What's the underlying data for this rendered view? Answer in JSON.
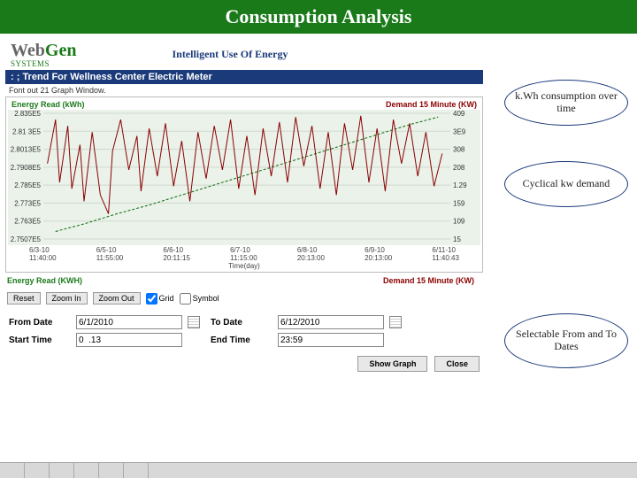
{
  "title": "Consumption Analysis",
  "brand": {
    "web": "Web",
    "gen": "Gen",
    "sub": "SYSTEMS"
  },
  "tagline": "Intelligent Use Of Energy",
  "section_title": ": ; Trend For Wellness Center Electric Meter",
  "popout_label": "Font out 21 Graph Window.",
  "chart": {
    "left_axis_label": "Energy Read (kWh)",
    "right_axis_label": "Demand 15 Minute (KW)",
    "xlabel": "Time(day)",
    "bg_color": "#eaf2ea",
    "grid_color": "#cfd9cf",
    "left_color": "#0a6a0a",
    "right_color": "#8b0000",
    "y_left": {
      "min": 2.7507,
      "max": 2.835,
      "ticks": [
        "2.835E5",
        "2.81 3E5",
        "2.8013E5",
        "2.7908E5",
        "2.785E5",
        "2.773E5",
        "2.763E5",
        "2.7507E5"
      ]
    },
    "y_right": {
      "min": 15,
      "max": 409,
      "ticks": [
        "409",
        "3E9",
        "308",
        "208",
        "1.29",
        "159",
        "109",
        "15"
      ]
    },
    "x_ticks": [
      {
        "a": "6/3-10",
        "b": "11:40:00"
      },
      {
        "a": "6/5-10",
        "b": "11:55:00"
      },
      {
        "a": "6/6-10",
        "b": "20:11:15"
      },
      {
        "a": "6/7-10",
        "b": "11:15:00"
      },
      {
        "a": "6/8-10",
        "b": "20:13:00"
      },
      {
        "a": "6/9-10",
        "b": "20:13:00"
      },
      {
        "a": "6/11-10",
        "b": "11:40:43"
      }
    ],
    "left_series": [
      {
        "x": 0.03,
        "y": 0.06
      },
      {
        "x": 0.1,
        "y": 0.12
      },
      {
        "x": 0.18,
        "y": 0.2
      },
      {
        "x": 0.26,
        "y": 0.27
      },
      {
        "x": 0.34,
        "y": 0.35
      },
      {
        "x": 0.42,
        "y": 0.43
      },
      {
        "x": 0.5,
        "y": 0.51
      },
      {
        "x": 0.58,
        "y": 0.59
      },
      {
        "x": 0.66,
        "y": 0.67
      },
      {
        "x": 0.74,
        "y": 0.75
      },
      {
        "x": 0.82,
        "y": 0.83
      },
      {
        "x": 0.9,
        "y": 0.91
      },
      {
        "x": 0.97,
        "y": 0.97
      }
    ],
    "right_series": [
      {
        "x": 0.01,
        "y": 0.6
      },
      {
        "x": 0.03,
        "y": 0.95
      },
      {
        "x": 0.04,
        "y": 0.45
      },
      {
        "x": 0.06,
        "y": 0.9
      },
      {
        "x": 0.07,
        "y": 0.4
      },
      {
        "x": 0.09,
        "y": 0.75
      },
      {
        "x": 0.1,
        "y": 0.3
      },
      {
        "x": 0.12,
        "y": 0.85
      },
      {
        "x": 0.14,
        "y": 0.35
      },
      {
        "x": 0.16,
        "y": 0.2
      },
      {
        "x": 0.17,
        "y": 0.7
      },
      {
        "x": 0.19,
        "y": 0.95
      },
      {
        "x": 0.21,
        "y": 0.55
      },
      {
        "x": 0.23,
        "y": 0.82
      },
      {
        "x": 0.24,
        "y": 0.38
      },
      {
        "x": 0.26,
        "y": 0.88
      },
      {
        "x": 0.28,
        "y": 0.5
      },
      {
        "x": 0.3,
        "y": 0.92
      },
      {
        "x": 0.32,
        "y": 0.42
      },
      {
        "x": 0.34,
        "y": 0.78
      },
      {
        "x": 0.36,
        "y": 0.3
      },
      {
        "x": 0.38,
        "y": 0.85
      },
      {
        "x": 0.4,
        "y": 0.48
      },
      {
        "x": 0.42,
        "y": 0.9
      },
      {
        "x": 0.44,
        "y": 0.55
      },
      {
        "x": 0.46,
        "y": 0.95
      },
      {
        "x": 0.48,
        "y": 0.4
      },
      {
        "x": 0.5,
        "y": 0.82
      },
      {
        "x": 0.52,
        "y": 0.35
      },
      {
        "x": 0.54,
        "y": 0.88
      },
      {
        "x": 0.56,
        "y": 0.5
      },
      {
        "x": 0.58,
        "y": 0.93
      },
      {
        "x": 0.6,
        "y": 0.45
      },
      {
        "x": 0.62,
        "y": 0.97
      },
      {
        "x": 0.64,
        "y": 0.58
      },
      {
        "x": 0.66,
        "y": 0.9
      },
      {
        "x": 0.68,
        "y": 0.4
      },
      {
        "x": 0.7,
        "y": 0.85
      },
      {
        "x": 0.72,
        "y": 0.35
      },
      {
        "x": 0.74,
        "y": 0.92
      },
      {
        "x": 0.76,
        "y": 0.55
      },
      {
        "x": 0.78,
        "y": 0.98
      },
      {
        "x": 0.8,
        "y": 0.45
      },
      {
        "x": 0.82,
        "y": 0.88
      },
      {
        "x": 0.84,
        "y": 0.38
      },
      {
        "x": 0.86,
        "y": 0.95
      },
      {
        "x": 0.88,
        "y": 0.6
      },
      {
        "x": 0.9,
        "y": 0.92
      },
      {
        "x": 0.92,
        "y": 0.5
      },
      {
        "x": 0.94,
        "y": 0.85
      },
      {
        "x": 0.96,
        "y": 0.42
      },
      {
        "x": 0.98,
        "y": 0.68
      }
    ]
  },
  "toolbar": {
    "legend_left": "Energy Read (KWH)",
    "legend_right": "Demand 15 Minute (KW)",
    "reset": "Reset",
    "zoom_in": "Zoom In",
    "zoom_out": "Zoom Out",
    "grid_label": "Grid",
    "grid_checked": true,
    "symbol_label": "Symbol",
    "symbol_checked": false
  },
  "dates": {
    "from_label": "From Date",
    "from_value": "6/1/2010",
    "to_label": "To Date",
    "to_value": "6/12/2010",
    "start_label": "Start Time",
    "start_value": "0  .13",
    "end_label": "End Time",
    "end_value": "23:59"
  },
  "actions": {
    "show_graph": "Show Graph",
    "close": "Close"
  },
  "callouts": {
    "c1": "k.Wh consumption over time",
    "c2": "Cyclical kw demand",
    "c3": "Selectable From and To Dates"
  }
}
